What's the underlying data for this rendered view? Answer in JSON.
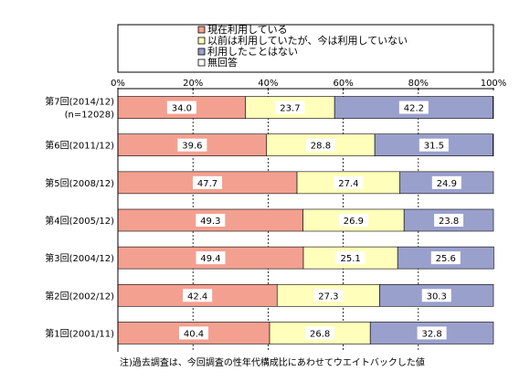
{
  "chart_data": {
    "type": "bar",
    "orientation": "horizontal",
    "stacked": true,
    "categories": [
      [
        "第7回(2014/12)",
        "(n=12028)"
      ],
      [
        "第6回(2011/12)"
      ],
      [
        "第5回(2008/12)"
      ],
      [
        "第4回(2005/12)"
      ],
      [
        "第3回(2004/12)"
      ],
      [
        "第2回(2002/12)"
      ],
      [
        "第1回(2001/11)"
      ]
    ],
    "series": [
      {
        "name": "現在利用している",
        "color": "#f4a090",
        "values": [
          34.0,
          39.6,
          47.7,
          49.3,
          49.4,
          42.4,
          40.4
        ]
      },
      {
        "name": "以前は利用していたが、今は利用していない",
        "color": "#ffffbb",
        "values": [
          23.7,
          28.8,
          27.4,
          26.9,
          25.1,
          27.3,
          26.8
        ]
      },
      {
        "name": "利用したことはない",
        "color": "#9aa0cc",
        "values": [
          42.2,
          31.5,
          24.9,
          23.8,
          25.6,
          30.3,
          32.8
        ]
      },
      {
        "name": "無回答",
        "color": "#ffffff",
        "values": [
          0.1,
          0.1,
          0.0,
          0.0,
          0.0,
          0.0,
          0.0
        ]
      }
    ],
    "xlim": [
      0,
      100
    ],
    "xticks": [
      "0%",
      "20%",
      "40%",
      "60%",
      "80%",
      "100%"
    ],
    "grid": true,
    "legend_position": "top",
    "note": "注)過去調査は、今回調査の性年代構成比にあわせてウエイトバックした値"
  }
}
